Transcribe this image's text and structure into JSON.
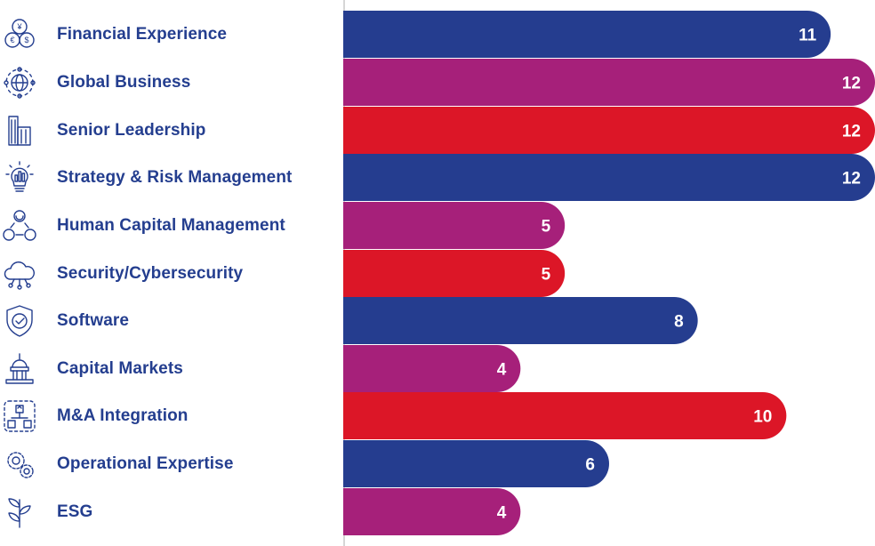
{
  "chart_data": {
    "type": "bar",
    "orientation": "horizontal",
    "title": "",
    "xlabel": "",
    "ylabel": "",
    "xlim": [
      0,
      12
    ],
    "grid": false,
    "colors": [
      "#253d8f",
      "#a6207a",
      "#dc1627"
    ],
    "categories": [
      "Financial Experience",
      "Global Business",
      "Senior Leadership",
      "Strategy & Risk Management",
      "Human Capital Management",
      "Security/Cybersecurity",
      "Software",
      "Capital Markets",
      "M&A Integration",
      "Operational Expertise",
      "ESG"
    ],
    "values": [
      11,
      12,
      12,
      12,
      5,
      5,
      8,
      4,
      10,
      6,
      4
    ],
    "value_labels": [
      "11",
      "12",
      "12",
      "12",
      "5",
      "5",
      "8",
      "4",
      "10",
      "6",
      "4"
    ],
    "icons": [
      "currency-coins-icon",
      "globe-network-icon",
      "buildings-icon",
      "lightbulb-chart-icon",
      "people-network-icon",
      "cloud-network-icon",
      "shield-check-icon",
      "capitol-building-icon",
      "flowchart-icon",
      "gears-icon",
      "leaf-plant-icon"
    ]
  }
}
